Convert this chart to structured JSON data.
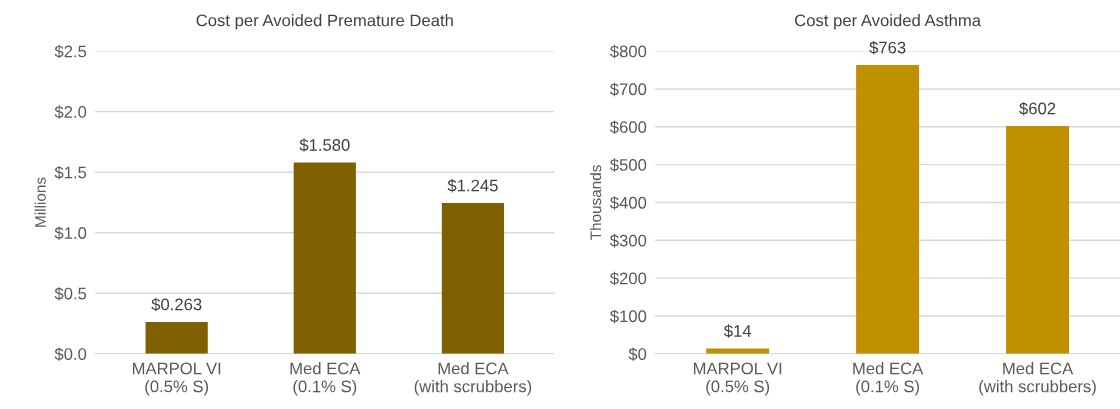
{
  "chart_data": [
    {
      "type": "bar",
      "title": "Cost per Avoided Premature Death",
      "ylabel": "Millions",
      "categories": [
        "MARPOL VI\n(0.5% S)",
        "Med ECA\n(0.1% S)",
        "Med ECA\n(with scrubbers)"
      ],
      "values": [
        0.263,
        1.58,
        1.245
      ],
      "value_labels": [
        "$0.263",
        "$1.580",
        "$1.245"
      ],
      "color": "#7f6000",
      "ylim": [
        0,
        2.5
      ],
      "yticks": [
        {
          "value": 0,
          "label": "$0.0"
        },
        {
          "value": 0.5,
          "label": "$0.5"
        },
        {
          "value": 1.0,
          "label": "$1.0"
        },
        {
          "value": 1.5,
          "label": "$1.5"
        },
        {
          "value": 2.0,
          "label": "$2.0"
        },
        {
          "value": 2.5,
          "label": "$2.5"
        }
      ],
      "grid": "y"
    },
    {
      "type": "bar",
      "title": "Cost per Avoided Asthma",
      "ylabel": "Thousands",
      "categories": [
        "MARPOL VI\n(0.5% S)",
        "Med ECA\n(0.1% S)",
        "Med ECA\n(with scrubbers)"
      ],
      "values": [
        14,
        763,
        602
      ],
      "value_labels": [
        "$14",
        "$763",
        "$602"
      ],
      "color": "#bf9000",
      "ylim": [
        0,
        800
      ],
      "yticks": [
        {
          "value": 0,
          "label": "$0"
        },
        {
          "value": 100,
          "label": "$100"
        },
        {
          "value": 200,
          "label": "$200"
        },
        {
          "value": 300,
          "label": "$300"
        },
        {
          "value": 400,
          "label": "$400"
        },
        {
          "value": 500,
          "label": "$500"
        },
        {
          "value": 600,
          "label": "$600"
        },
        {
          "value": 700,
          "label": "$700"
        },
        {
          "value": 800,
          "label": "$800"
        }
      ],
      "grid": "y"
    }
  ]
}
